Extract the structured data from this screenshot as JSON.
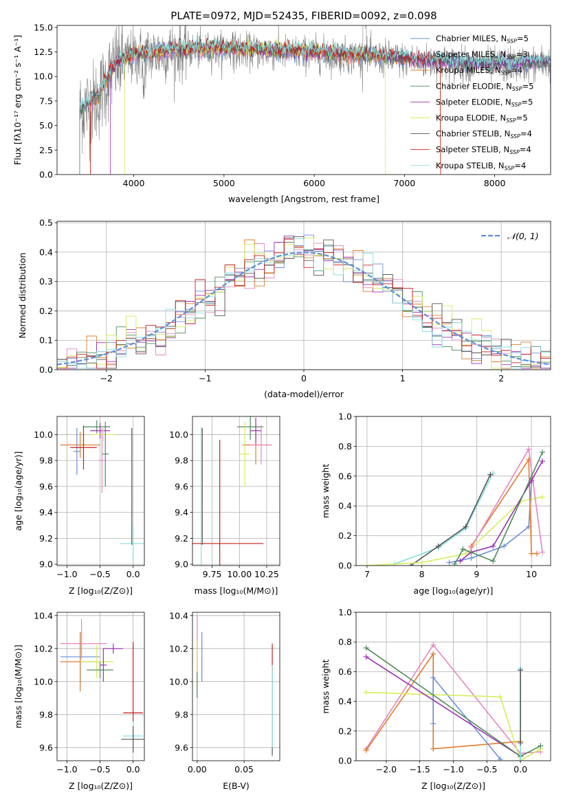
{
  "colors": {
    "chabrier_miles": "#6a8fd9",
    "salpeter_miles": "#e585c0",
    "kroupa_miles": "#e07b2a",
    "chabrier_elodie": "#4e8a5c",
    "salpeter_elodie": "#9a30b0",
    "kroupa_elodie": "#d4ee5a",
    "chabrier_stelib": "#555555",
    "salpeter_stelib": "#c81e1e",
    "kroupa_stelib": "#86dede",
    "normal_curve": "#5b8fd8"
  },
  "chart_data": [
    {
      "id": "spectrum",
      "type": "line",
      "title": "PLATE=0972, MJD=52435, FIBERID=0092, z=0.098",
      "xlabel": "wavelength [Angstrom, rest frame]",
      "ylabel": "Flux [fλ10⁻¹⁷ erg cm⁻² s⁻¹ A⁻¹]",
      "xlim": [
        3150,
        8620
      ],
      "ylim": [
        0,
        15.2
      ],
      "xticks": [
        4000,
        5000,
        6000,
        7000,
        8000
      ],
      "yticks": [
        0.0,
        2.5,
        5.0,
        7.5,
        10.0,
        12.5,
        15.0
      ],
      "legend_position": "top-right",
      "legend": [
        {
          "prefix": "Chabrier MILES, N",
          "sub": "SSP",
          "suffix": "=5"
        },
        {
          "prefix": "Salpeter MILES, N",
          "sub": "SSP",
          "suffix": "=3"
        },
        {
          "prefix": "Kroupa MILES, N",
          "sub": "SSP",
          "suffix": "=4"
        },
        {
          "prefix": "Chabrier ELODIE, N",
          "sub": "SSP",
          "suffix": "=5"
        },
        {
          "prefix": "Salpeter ELODIE, N",
          "sub": "SSP",
          "suffix": "=5"
        },
        {
          "prefix": "Kroupa ELODIE, N",
          "sub": "SSP",
          "suffix": "=5"
        },
        {
          "prefix": "Chabrier STELIB, N",
          "sub": "SSP",
          "suffix": "=4"
        },
        {
          "prefix": "Salpeter STELIB, N",
          "sub": "SSP",
          "suffix": "=4"
        },
        {
          "prefix": "Kroupa STELIB, N",
          "sub": "SSP",
          "suffix": "=4"
        }
      ],
      "continuum": {
        "x": [
          3400,
          3600,
          3700,
          3800,
          4000,
          4200,
          4500,
          5000,
          5500,
          6000,
          6500,
          7000,
          7500,
          8000,
          8500
        ],
        "y": [
          6.5,
          7.6,
          9.6,
          11.2,
          12.0,
          12.3,
          12.6,
          12.7,
          12.5,
          12.3,
          12.0,
          11.7,
          11.3,
          11.1,
          11.3
        ]
      },
      "model_start_x": [
        3400,
        3400,
        3520,
        3400,
        3740,
        3900,
        3400,
        3520,
        3400
      ],
      "model_end_x": [
        8620,
        8620,
        7400,
        8620,
        8620,
        6790,
        8620,
        7400,
        8620
      ]
    },
    {
      "id": "residuals",
      "type": "line",
      "xlabel": "(data-model)/error",
      "ylabel": "Normed distribution",
      "xlim": [
        -2.5,
        2.5
      ],
      "ylim": [
        0,
        0.505
      ],
      "xticks": [
        -2,
        -1,
        0,
        1,
        2
      ],
      "yticks": [
        0.0,
        0.1,
        0.2,
        0.3,
        0.4,
        0.5
      ],
      "legend_position": "top-right",
      "legend_label": "𝒩(0, 1)",
      "bin_width": 0.1
    },
    {
      "id": "age_vs_Z",
      "type": "scatter",
      "xlabel": "Z [log₁₀(Z/Z⊙)]",
      "ylabel": "age  [log₁₀(age/yr)]",
      "xlim": [
        -1.15,
        0.17
      ],
      "ylim": [
        8.99,
        10.14
      ],
      "xticks": [
        -1.0,
        -0.5,
        0.0
      ],
      "yticks": [
        9.0,
        9.2,
        9.4,
        9.6,
        9.8,
        10.0
      ],
      "points": [
        {
          "x": -0.8,
          "y": 9.92,
          "xerr": 0.3,
          "yerr": 0.1,
          "c": "kroupa_miles"
        },
        {
          "x": -0.85,
          "y": 9.87,
          "xerr": 0.05,
          "yerr": 0.18,
          "c": "chabrier_miles"
        },
        {
          "x": -0.75,
          "y": 9.9,
          "xerr": 0.2,
          "yerr": 0.17,
          "c": "salpeter_stelib"
        },
        {
          "x": -0.55,
          "y": 10.06,
          "xerr": 0.2,
          "yerr": 0.05,
          "c": "chabrier_elodie"
        },
        {
          "x": -0.5,
          "y": 10.03,
          "xerr": 0.15,
          "yerr": 0.06,
          "c": "salpeter_elodie"
        },
        {
          "x": -0.45,
          "y": 10.0,
          "xerr": 0.2,
          "yerr": 0.05,
          "c": "kroupa_elodie"
        },
        {
          "x": -0.47,
          "y": 9.8,
          "xerr": 0.05,
          "yerr": 0.25,
          "c": "salpeter_miles"
        },
        {
          "x": -0.42,
          "y": 9.85,
          "xerr": 0.05,
          "yerr": 0.25,
          "c": "chabrier_elodie"
        },
        {
          "x": 0.0,
          "y": 9.16,
          "xerr": 0.2,
          "yerr": 0.15,
          "c": "kroupa_stelib"
        },
        {
          "x": -0.02,
          "y": 9.6,
          "xerr": 0.0,
          "yerr": 0.45,
          "c": "chabrier_stelib"
        }
      ]
    },
    {
      "id": "age_vs_mass",
      "type": "scatter",
      "xlabel": "mass [log₁₀(M/M⊙)]",
      "ylabel": "",
      "xlim": [
        9.57,
        10.37
      ],
      "ylim": [
        8.99,
        10.14
      ],
      "xticks": [
        9.75,
        10.0,
        10.25
      ],
      "yticks": [
        9.0,
        9.2,
        9.4,
        9.6,
        9.8,
        10.0
      ],
      "points": [
        {
          "x": 9.65,
          "y": 9.16,
          "xerr": 0.05,
          "yerr": 0.9,
          "c": "kroupa_stelib"
        },
        {
          "x": 9.82,
          "y": 9.16,
          "xerr": 0.4,
          "yerr": 0.8,
          "c": "salpeter_stelib"
        },
        {
          "x": 10.1,
          "y": 10.06,
          "xerr": 0.12,
          "yerr": 0.1,
          "c": "chabrier_elodie"
        },
        {
          "x": 10.15,
          "y": 9.92,
          "xerr": 0.12,
          "yerr": 0.15,
          "c": "kroupa_miles"
        },
        {
          "x": 10.2,
          "y": 9.92,
          "xerr": 0.1,
          "yerr": 0.15,
          "c": "salpeter_miles"
        },
        {
          "x": 10.15,
          "y": 10.03,
          "xerr": 0.05,
          "yerr": 0.1,
          "c": "salpeter_elodie"
        },
        {
          "x": 10.05,
          "y": 9.85,
          "xerr": 0.05,
          "yerr": 0.25,
          "c": "kroupa_elodie"
        },
        {
          "x": 9.66,
          "y": 9.6,
          "xerr": 0.0,
          "yerr": 0.45,
          "c": "chabrier_stelib"
        }
      ]
    },
    {
      "id": "massweight_vs_age",
      "type": "line",
      "xlabel": "age  [log₁₀(age/yr)]",
      "ylabel": "mass weight",
      "xlim": [
        6.8,
        10.35
      ],
      "ylim": [
        0,
        1.0
      ],
      "xticks": [
        7,
        8,
        9,
        10
      ],
      "yticks": [
        0.0,
        0.2,
        0.4,
        0.6,
        0.8,
        1.0
      ],
      "series": [
        {
          "c": "kroupa_stelib",
          "x": [
            7.5,
            8.3,
            8.8,
            9.3
          ],
          "y": [
            0.01,
            0.12,
            0.25,
            0.62
          ]
        },
        {
          "c": "chabrier_stelib",
          "x": [
            7.8,
            8.3,
            8.8,
            9.25
          ],
          "y": [
            0.0,
            0.13,
            0.26,
            0.61
          ]
        },
        {
          "c": "kroupa_elodie",
          "x": [
            7.0,
            8.0,
            8.8,
            9.8,
            10.2
          ],
          "y": [
            0.0,
            0.02,
            0.08,
            0.43,
            0.46
          ]
        },
        {
          "c": "chabrier_miles",
          "x": [
            8.5,
            8.9,
            9.5,
            9.95,
            10.0
          ],
          "y": [
            0.02,
            0.05,
            0.13,
            0.26,
            0.56
          ]
        },
        {
          "c": "kroupa_miles",
          "x": [
            8.9,
            9.95,
            10.0,
            10.1
          ],
          "y": [
            0.13,
            0.71,
            0.08,
            0.08
          ]
        },
        {
          "c": "salpeter_miles",
          "x": [
            8.9,
            9.95,
            10.2
          ],
          "y": [
            0.12,
            0.78,
            0.09
          ]
        },
        {
          "c": "salpeter_elodie",
          "x": [
            8.7,
            8.9,
            9.3,
            10.0,
            10.2
          ],
          "y": [
            0.03,
            0.09,
            0.13,
            0.57,
            0.7
          ]
        },
        {
          "c": "chabrier_elodie",
          "x": [
            8.6,
            8.75,
            9.3,
            10.2
          ],
          "y": [
            0.01,
            0.11,
            0.03,
            0.76
          ]
        }
      ]
    },
    {
      "id": "mass_vs_Z",
      "type": "scatter",
      "xlabel": "Z [log₁₀(Z/Z⊙)]",
      "ylabel": "mass [log₁₀(M/M⊙)]",
      "xlim": [
        -1.15,
        0.17
      ],
      "ylim": [
        9.52,
        10.42
      ],
      "xticks": [
        -1.0,
        -0.5,
        0.0
      ],
      "yticks": [
        9.6,
        9.8,
        10.0,
        10.2,
        10.4
      ],
      "points": [
        {
          "x": -0.75,
          "y": 10.23,
          "xerr": 0.35,
          "yerr": 0.0,
          "c": "salpeter_miles"
        },
        {
          "x": -0.3,
          "y": 10.2,
          "xerr": 0.15,
          "yerr": 0.03,
          "c": "salpeter_elodie"
        },
        {
          "x": -0.8,
          "y": 10.15,
          "xerr": 0.3,
          "yerr": 0.15,
          "c": "chabrier_miles"
        },
        {
          "x": -0.8,
          "y": 10.12,
          "xerr": 0.3,
          "yerr": 0.18,
          "c": "kroupa_miles"
        },
        {
          "x": -0.55,
          "y": 10.12,
          "xerr": 0.25,
          "yerr": 0.1,
          "c": "kroupa_elodie"
        },
        {
          "x": -0.5,
          "y": 10.07,
          "xerr": 0.2,
          "yerr": 0.05,
          "c": "chabrier_elodie"
        },
        {
          "x": -0.45,
          "y": 10.1,
          "xerr": 0.05,
          "yerr": 0.1,
          "c": "salpeter_elodie"
        },
        {
          "x": -0.78,
          "y": 10.26,
          "xerr": 0.0,
          "yerr": 0.12,
          "c": "salpeter_miles"
        },
        {
          "x": 0.0,
          "y": 9.81,
          "xerr": 0.15,
          "yerr": 0.0,
          "c": "salpeter_stelib"
        },
        {
          "x": 0.0,
          "y": 9.67,
          "xerr": 0.15,
          "yerr": 0.1,
          "c": "kroupa_stelib"
        },
        {
          "x": 0.0,
          "y": 9.65,
          "xerr": 0.18,
          "yerr": 0.08,
          "c": "chabrier_stelib"
        },
        {
          "x": 0.0,
          "y": 10.0,
          "xerr": 0.0,
          "yerr": 0.24,
          "c": "salpeter_stelib"
        }
      ]
    },
    {
      "id": "mass_vs_EBV",
      "type": "scatter",
      "xlabel": "E(B-V)",
      "ylabel": "",
      "xlim": [
        -0.005,
        0.088
      ],
      "ylim": [
        9.52,
        10.42
      ],
      "xticks": [
        0.0,
        0.05
      ],
      "yticks": [
        9.6,
        9.8,
        10.0,
        10.2,
        10.4
      ],
      "points": [
        {
          "x": 0.0,
          "y": 10.3,
          "xerr": 0.0,
          "yerr": 0.1,
          "c": "salpeter_miles"
        },
        {
          "x": 0.0,
          "y": 10.15,
          "xerr": 0.0,
          "yerr": 0.1,
          "c": "salpeter_stelib"
        },
        {
          "x": 0.0,
          "y": 10.1,
          "xerr": 0.0,
          "yerr": 0.15,
          "c": "kroupa_elodie"
        },
        {
          "x": 0.0,
          "y": 9.98,
          "xerr": 0.0,
          "yerr": 0.08,
          "c": "chabrier_elodie"
        },
        {
          "x": 0.005,
          "y": 10.15,
          "xerr": 0.0,
          "yerr": 0.15,
          "c": "chabrier_miles"
        },
        {
          "x": 0.08,
          "y": 10.14,
          "xerr": 0.0,
          "yerr": 0.09,
          "c": "salpeter_stelib"
        },
        {
          "x": 0.08,
          "y": 9.8,
          "xerr": 0.0,
          "yerr": 0.25,
          "c": "chabrier_stelib"
        },
        {
          "x": 0.08,
          "y": 9.85,
          "xerr": 0.0,
          "yerr": 0.25,
          "c": "kroupa_stelib"
        }
      ]
    },
    {
      "id": "massweight_vs_Z",
      "type": "line",
      "xlabel": "Z [log₁₀(Z/Z⊙)]",
      "ylabel": "mass weight",
      "xlim": [
        -2.45,
        0.45
      ],
      "ylim": [
        0,
        1.0
      ],
      "xticks": [
        -2.0,
        -1.5,
        -1.0,
        -0.5,
        0.0
      ],
      "yticks": [
        0.0,
        0.2,
        0.4,
        0.6,
        0.8,
        1.0
      ],
      "series": [
        {
          "c": "salpeter_miles",
          "x": [
            -2.3,
            -1.3,
            0.0,
            0.3
          ],
          "y": [
            0.08,
            0.78,
            0.05,
            0.06
          ]
        },
        {
          "c": "kroupa_miles",
          "x": [
            -2.3,
            -1.3,
            -1.3,
            0.0
          ],
          "y": [
            0.07,
            0.72,
            0.08,
            0.13
          ]
        },
        {
          "c": "chabrier_miles",
          "x": [
            -1.3,
            -1.3,
            -0.3
          ],
          "y": [
            0.25,
            0.56,
            0.01
          ]
        },
        {
          "c": "kroupa_elodie",
          "x": [
            -2.3,
            -0.3,
            0.0,
            0.3
          ],
          "y": [
            0.46,
            0.43,
            0.0,
            0.08
          ]
        },
        {
          "c": "salpeter_elodie",
          "x": [
            -2.3,
            0.0
          ],
          "y": [
            0.7,
            0.03
          ]
        },
        {
          "c": "chabrier_elodie",
          "x": [
            -2.3,
            0.0,
            0.3
          ],
          "y": [
            0.76,
            0.03,
            0.1
          ]
        },
        {
          "c": "kroupa_stelib",
          "x": [
            0.0,
            0.0
          ],
          "y": [
            0.0,
            0.62
          ]
        },
        {
          "c": "chabrier_stelib",
          "x": [
            0.0,
            0.0
          ],
          "y": [
            0.12,
            0.61
          ]
        }
      ]
    }
  ]
}
